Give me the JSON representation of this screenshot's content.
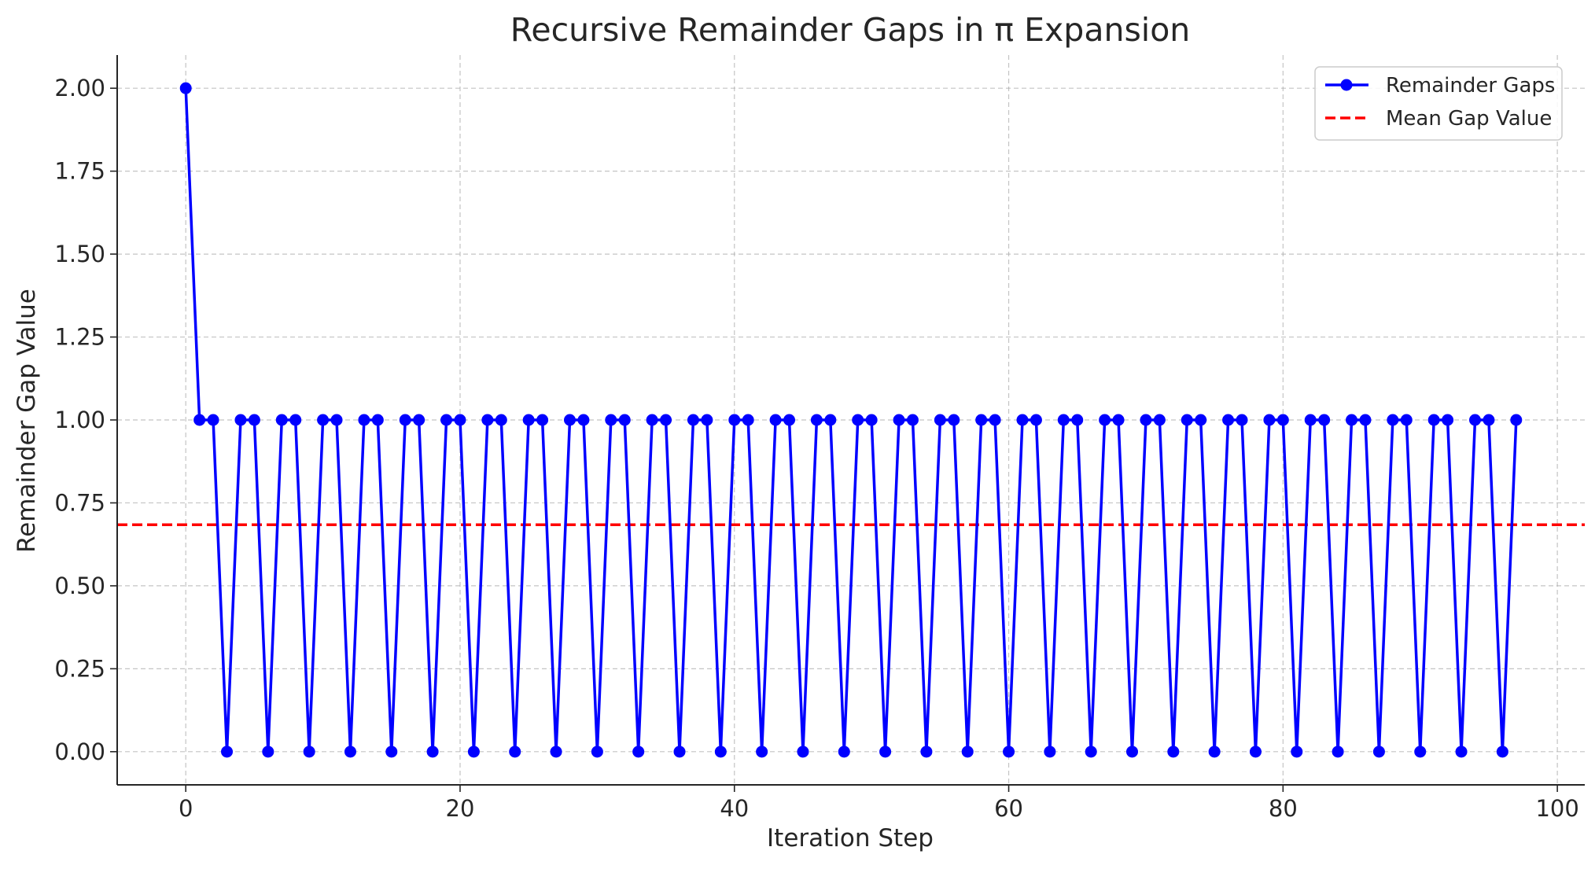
{
  "chart_data": {
    "type": "line",
    "title": "Recursive Remainder Gaps in π Expansion",
    "xlabel": "Iteration Step",
    "ylabel": "Remainder Gap Value",
    "xlim": [
      -5,
      102
    ],
    "ylim": [
      -0.1,
      2.1
    ],
    "xticks": [
      0,
      20,
      40,
      60,
      80,
      100
    ],
    "xtick_labels": [
      "0",
      "20",
      "40",
      "60",
      "80",
      "100"
    ],
    "yticks": [
      0,
      0.25,
      0.5,
      0.75,
      1.0,
      1.25,
      1.5,
      1.75,
      2.0
    ],
    "ytick_labels": [
      "0.00",
      "0.25",
      "0.50",
      "0.75",
      "1.00",
      "1.25",
      "1.50",
      "1.75",
      "2.00"
    ],
    "grid": true,
    "legend_position": "top-right",
    "series": [
      {
        "name": "Remainder Gaps",
        "kind": "line-with-markers",
        "color": "#0000ff",
        "x": [
          0,
          1,
          2,
          3,
          4,
          5,
          6,
          7,
          8,
          9,
          10,
          11,
          12,
          13,
          14,
          15,
          16,
          17,
          18,
          19,
          20,
          21,
          22,
          23,
          24,
          25,
          26,
          27,
          28,
          29,
          30,
          31,
          32,
          33,
          34,
          35,
          36,
          37,
          38,
          39,
          40,
          41,
          42,
          43,
          44,
          45,
          46,
          47,
          48,
          49,
          50,
          51,
          52,
          53,
          54,
          55,
          56,
          57,
          58,
          59,
          60,
          61,
          62,
          63,
          64,
          65,
          66,
          67,
          68,
          69,
          70,
          71,
          72,
          73,
          74,
          75,
          76,
          77,
          78,
          79,
          80,
          81,
          82,
          83,
          84,
          85,
          86,
          87,
          88,
          89,
          90,
          91,
          92,
          93,
          94,
          95,
          96,
          97
        ],
        "values": [
          2,
          1,
          1,
          0,
          1,
          1,
          0,
          1,
          1,
          0,
          1,
          1,
          0,
          1,
          1,
          0,
          1,
          1,
          0,
          1,
          1,
          0,
          1,
          1,
          0,
          1,
          1,
          0,
          1,
          1,
          0,
          1,
          1,
          0,
          1,
          1,
          0,
          1,
          1,
          0,
          1,
          1,
          0,
          1,
          1,
          0,
          1,
          1,
          0,
          1,
          1,
          0,
          1,
          1,
          0,
          1,
          1,
          0,
          1,
          1,
          0,
          1,
          1,
          0,
          1,
          1,
          0,
          1,
          1,
          0,
          1,
          1,
          0,
          1,
          1,
          0,
          1,
          1,
          0,
          1,
          1,
          0,
          1,
          1,
          0,
          1,
          1,
          0,
          1,
          1,
          0,
          1,
          1,
          0,
          1,
          1,
          0,
          1
        ]
      },
      {
        "name": "Mean Gap Value",
        "kind": "horizontal-dashed",
        "color": "#ff0000",
        "value": 0.684
      }
    ]
  }
}
